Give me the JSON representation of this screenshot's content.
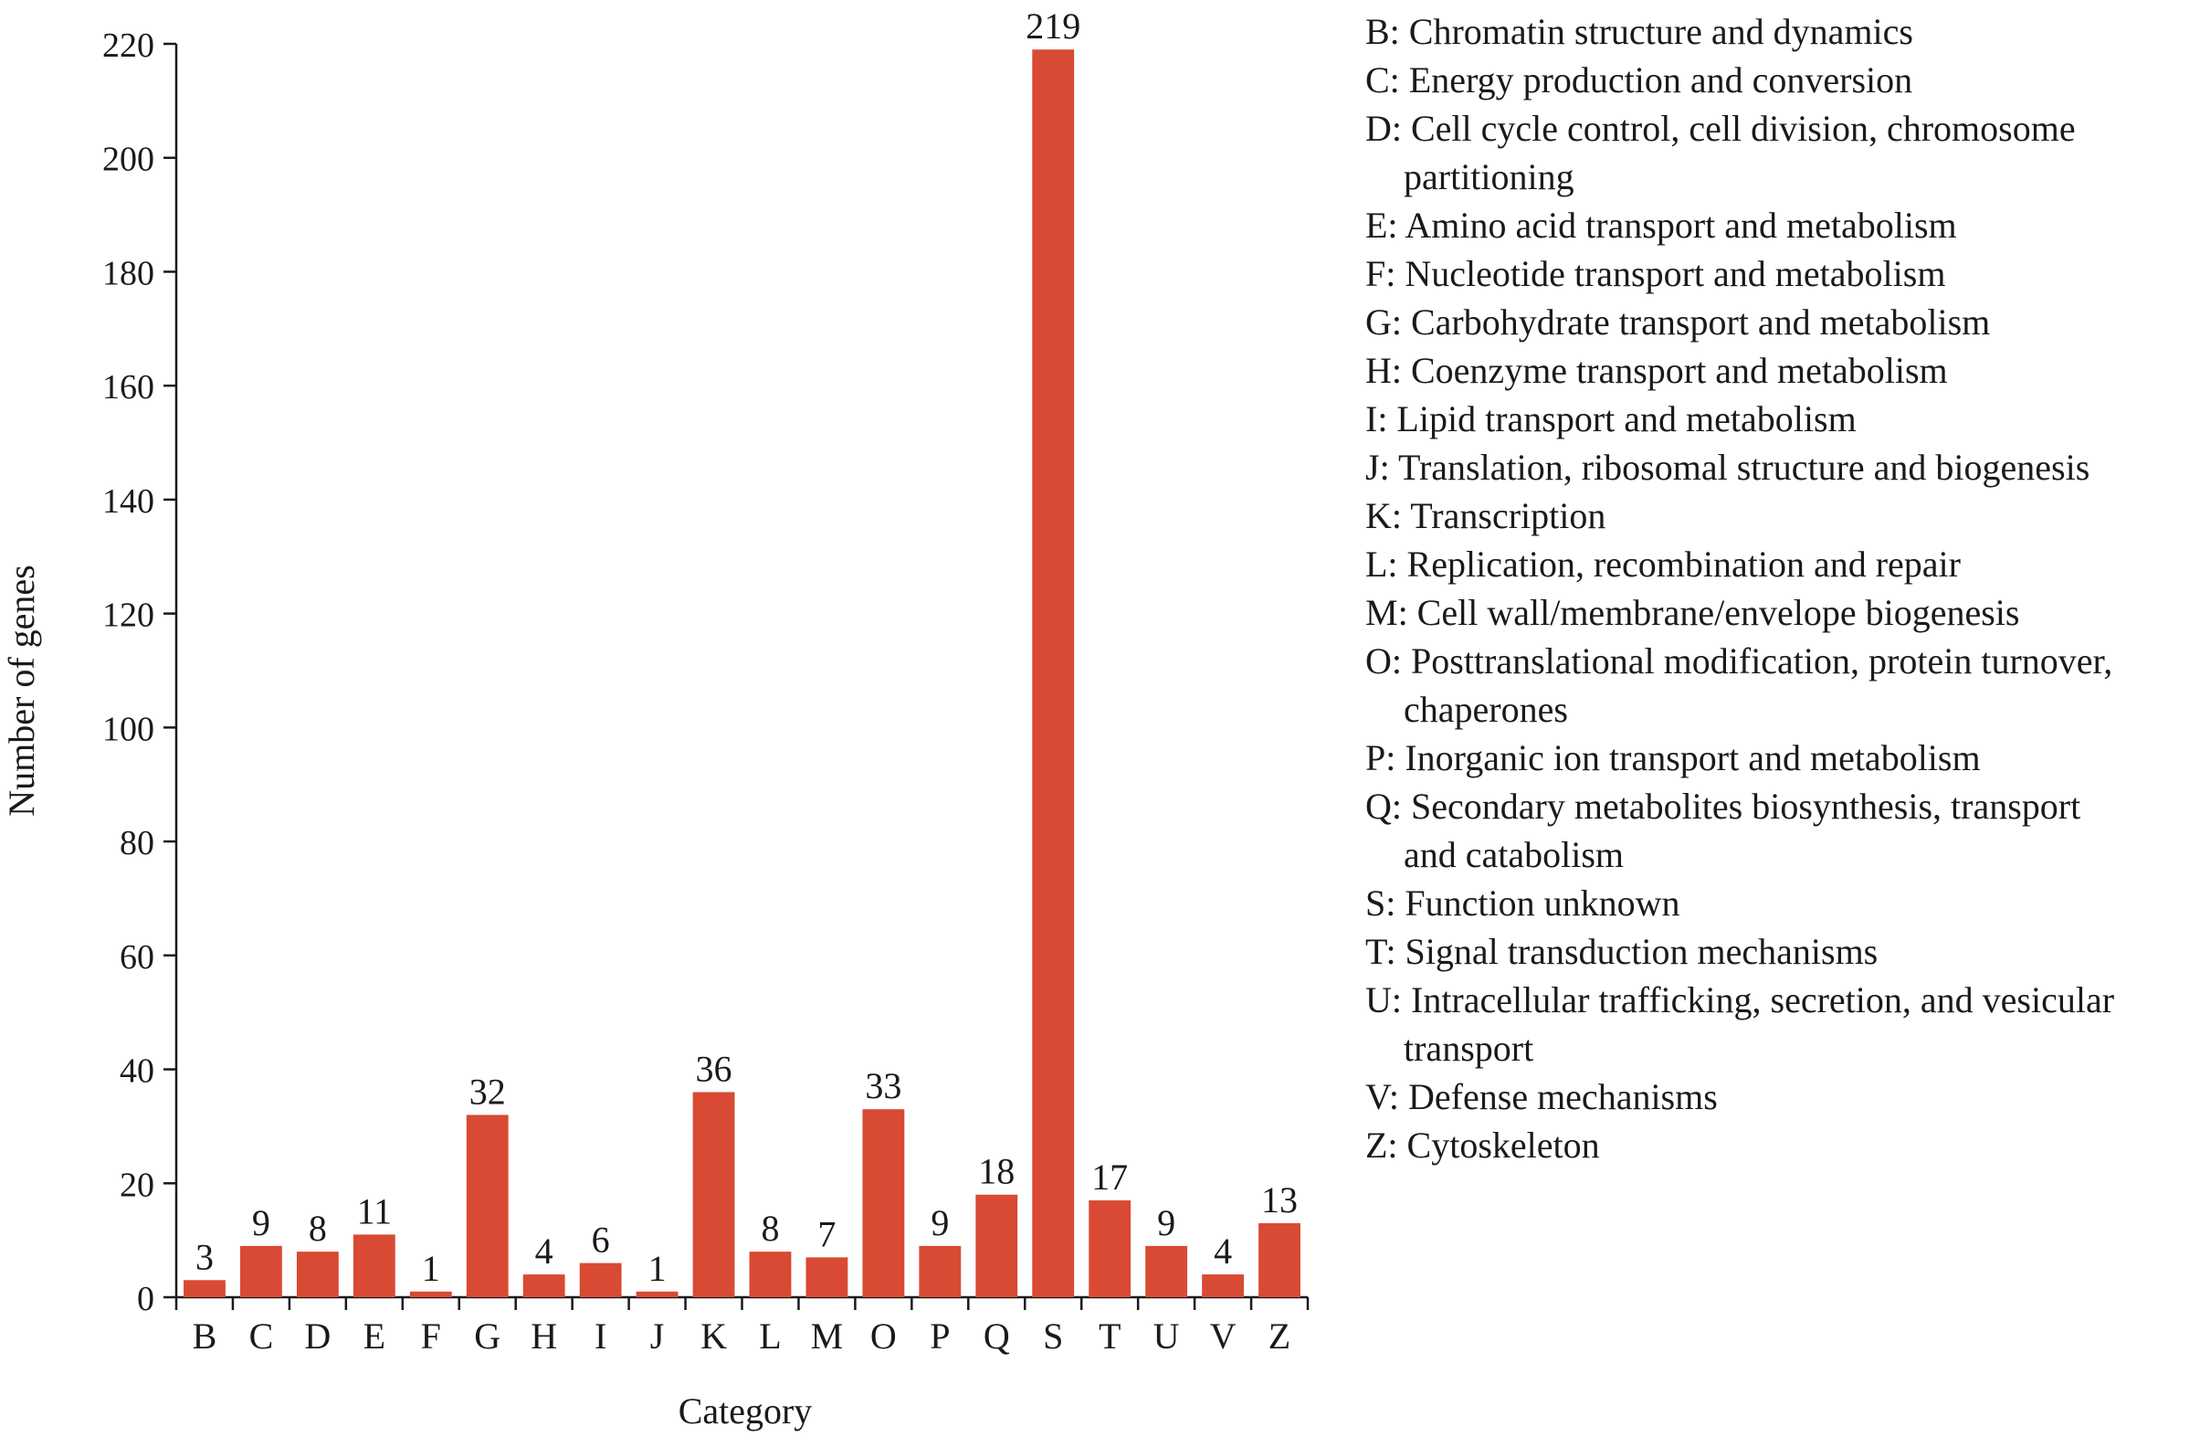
{
  "chart_data": {
    "type": "bar",
    "title": "",
    "xlabel": "Category",
    "ylabel": "Number of genes",
    "ylim": [
      0,
      220
    ],
    "yticks": [
      0,
      20,
      40,
      60,
      80,
      100,
      120,
      140,
      160,
      180,
      200,
      220
    ],
    "categories": [
      "B",
      "C",
      "D",
      "E",
      "F",
      "G",
      "H",
      "I",
      "J",
      "K",
      "L",
      "M",
      "O",
      "P",
      "Q",
      "S",
      "T",
      "U",
      "V",
      "Z"
    ],
    "values": [
      3,
      9,
      8,
      11,
      1,
      32,
      4,
      6,
      1,
      36,
      8,
      7,
      33,
      9,
      18,
      219,
      17,
      9,
      4,
      13
    ],
    "data_labels": [
      "3",
      "9",
      "8",
      "11",
      "1",
      "32",
      "4",
      "6",
      "1",
      "36",
      "8",
      "7",
      "33",
      "9",
      "18",
      "219",
      "17",
      "9",
      "4",
      "13"
    ],
    "bar_color": "#d84a33",
    "grid": false,
    "legend_position": "right"
  },
  "legend": [
    {
      "key": "B",
      "lines": [
        "B: Chromatin structure and dynamics"
      ]
    },
    {
      "key": "C",
      "lines": [
        "C: Energy production and conversion"
      ]
    },
    {
      "key": "D",
      "lines": [
        "D: Cell cycle control, cell division, chromosome",
        "partitioning"
      ]
    },
    {
      "key": "E",
      "lines": [
        "E: Amino acid transport and metabolism"
      ]
    },
    {
      "key": "F",
      "lines": [
        "F: Nucleotide transport and metabolism"
      ]
    },
    {
      "key": "G",
      "lines": [
        "G: Carbohydrate transport and metabolism"
      ]
    },
    {
      "key": "H",
      "lines": [
        "H: Coenzyme transport and metabolism"
      ]
    },
    {
      "key": "I",
      "lines": [
        "I: Lipid transport and metabolism"
      ]
    },
    {
      "key": "J",
      "lines": [
        "J: Translation, ribosomal structure and biogenesis"
      ]
    },
    {
      "key": "K",
      "lines": [
        "K: Transcription"
      ]
    },
    {
      "key": "L",
      "lines": [
        "L: Replication, recombination and repair"
      ]
    },
    {
      "key": "M",
      "lines": [
        "M: Cell wall/membrane/envelope biogenesis"
      ]
    },
    {
      "key": "O",
      "lines": [
        "O: Posttranslational modification, protein turnover,",
        "chaperones"
      ]
    },
    {
      "key": "P",
      "lines": [
        "P: Inorganic ion transport and metabolism"
      ]
    },
    {
      "key": "Q",
      "lines": [
        "Q: Secondary metabolites biosynthesis, transport",
        "and catabolism"
      ]
    },
    {
      "key": "S",
      "lines": [
        "S: Function unknown"
      ]
    },
    {
      "key": "T",
      "lines": [
        "T: Signal transduction mechanisms"
      ]
    },
    {
      "key": "U",
      "lines": [
        "U: Intracellular trafficking, secretion, and vesicular",
        "transport"
      ]
    },
    {
      "key": "V",
      "lines": [
        "V: Defense mechanisms"
      ]
    },
    {
      "key": "Z",
      "lines": [
        "Z: Cytoskeleton"
      ]
    }
  ]
}
